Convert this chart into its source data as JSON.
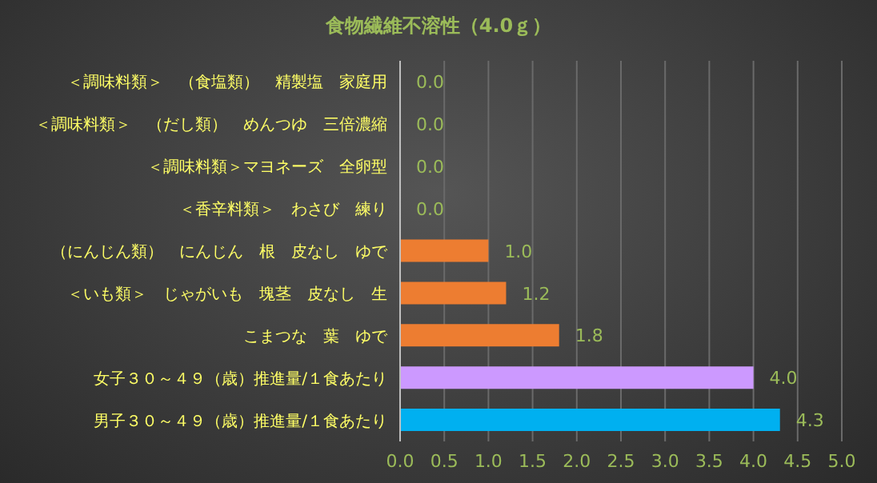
{
  "chart_data": {
    "type": "bar",
    "orientation": "horizontal",
    "title": "食物繊維不溶性（4.0ｇ）",
    "categories": [
      "＜調味料類＞　（食塩類）　精製塩　家庭用",
      "＜調味料類＞　（だし類）　めんつゆ　三倍濃縮",
      "＜調味料類＞マヨネーズ　全卵型",
      "＜香辛料類＞　わさび　練り",
      "（にんじん類）　にんじん　根　皮なし　ゆで",
      "＜いも類＞　じゃがいも　塊茎　皮なし　生",
      "こまつな　葉　ゆで",
      "女子３０～４９（歳）推進量/１食あたり",
      "男子３０～４９（歳）推進量/１食あたり"
    ],
    "values": [
      0,
      0,
      0,
      0,
      1.0,
      1.2,
      1.8,
      4.0,
      4.3
    ],
    "value_labels": [
      "0.0",
      "0.0",
      "0.0",
      "0.0",
      "1.0",
      "1.2",
      "1.8",
      "4.0",
      "4.3"
    ],
    "colors": [
      "#ed7d31",
      "#ed7d31",
      "#ed7d31",
      "#ed7d31",
      "#ed7d31",
      "#ed7d31",
      "#ed7d31",
      "#cc99ff",
      "#00b0f0"
    ],
    "xlim": [
      0,
      5
    ],
    "xticks": [
      {
        "value": 0,
        "label": "0.0"
      },
      {
        "value": 0.5,
        "label": "0.5"
      },
      {
        "value": 1,
        "label": "1.0"
      },
      {
        "value": 1.5,
        "label": "1.5"
      },
      {
        "value": 2,
        "label": "2.0"
      },
      {
        "value": 2.5,
        "label": "2.5"
      },
      {
        "value": 3,
        "label": "3.0"
      },
      {
        "value": 3.5,
        "label": "3.5"
      },
      {
        "value": 4,
        "label": "4.0"
      },
      {
        "value": 4.5,
        "label": "4.5"
      },
      {
        "value": 5,
        "label": "5.0"
      }
    ],
    "grid": "x",
    "legend": false
  }
}
